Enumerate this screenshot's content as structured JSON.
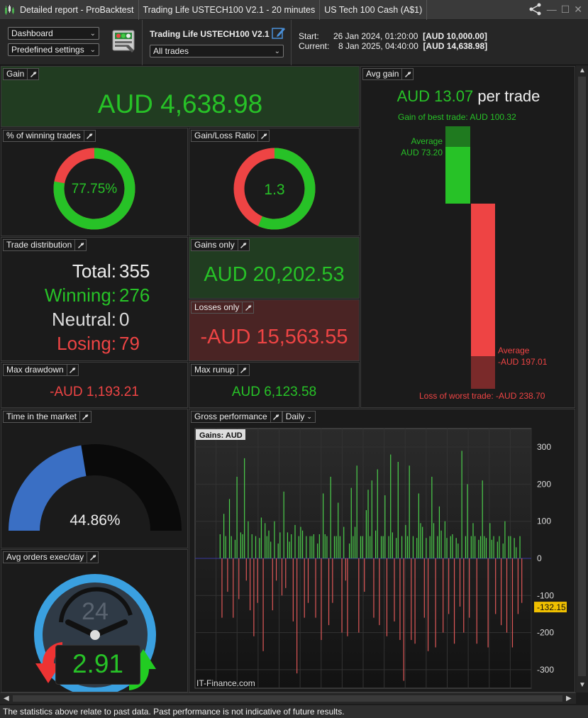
{
  "titlebar": {
    "tabs": [
      "Detailed report - ProBacktest",
      "Trading Life USTECH100 V2.1 - 20 minutes",
      "US Tech 100 Cash (A$1)"
    ]
  },
  "toolbar": {
    "view_select": "Dashboard",
    "settings_select": "Predefined settings",
    "strategy_name": "Trading Life USTECH100 V2.1",
    "trades_select": "All trades",
    "start_label": "Start:",
    "start_date": "26 Jan 2024, 01:20:00",
    "start_capital": "[AUD 10,000.00]",
    "current_label": "Current:",
    "current_date": "8 Jan 2025, 04:40:00",
    "current_capital": "[AUD 14,638.98]"
  },
  "gain": {
    "title": "Gain",
    "value": "AUD 4,638.98"
  },
  "win_pct": {
    "title": "% of winning trades",
    "value": "77.75%",
    "fraction": 0.7775
  },
  "gl_ratio": {
    "title": "Gain/Loss Ratio",
    "value": "1.3",
    "fraction": 0.5652
  },
  "distribution": {
    "title": "Trade distribution",
    "total_label": "Total:",
    "total": "355",
    "winning_label": "Winning:",
    "winning": "276",
    "neutral_label": "Neutral:",
    "neutral": "0",
    "losing_label": "Losing:",
    "losing": "79"
  },
  "gains_only": {
    "title": "Gains only",
    "value": "AUD 20,202.53"
  },
  "losses_only": {
    "title": "Losses only",
    "value": "-AUD 15,563.55"
  },
  "max_drawdown": {
    "title": "Max drawdown",
    "value": "-AUD 1,193.21"
  },
  "max_runup": {
    "title": "Max runup",
    "value": "AUD 6,123.58"
  },
  "avg_gain": {
    "title": "Avg gain",
    "value": "AUD 13.07",
    "suffix": "per trade",
    "best_trade": "Gain of best trade: AUD 100.32",
    "avg_win_label": "Average",
    "avg_win_value": "AUD 73.20",
    "avg_loss_label": "Average",
    "avg_loss_value": "-AUD 197.01",
    "worst_trade": "Loss of worst trade: -AUD 238.70"
  },
  "time_in_market": {
    "title": "Time in the market",
    "value": "44.86%",
    "fraction": 0.4486
  },
  "avg_orders": {
    "title": "Avg orders exec/day",
    "value": "2.91",
    "clock_number": "24"
  },
  "gross_perf": {
    "title": "Gross performance",
    "period_select": "Daily",
    "legend": "Gains: AUD",
    "watermark": "IT-Finance.com",
    "marker_value": "-132.15"
  },
  "chart_data": {
    "type": "bar",
    "title": "Gains: AUD",
    "ylim": [
      -350,
      350
    ],
    "yticks": [
      300,
      200,
      100,
      0,
      -100,
      -200,
      -300
    ],
    "values": [
      65,
      -160,
      120,
      60,
      -90,
      160,
      60,
      -160,
      50,
      220,
      -110,
      70,
      65,
      270,
      -60,
      100,
      -140,
      65,
      -210,
      60,
      -120,
      55,
      110,
      -250,
      95,
      60,
      75,
      45,
      -140,
      100,
      -60,
      40,
      70,
      -100,
      180,
      -80,
      70,
      45,
      65,
      -170,
      90,
      -310,
      60,
      85,
      75,
      -160,
      60,
      -120,
      60,
      60,
      65,
      -160,
      40,
      65,
      -220,
      175,
      65,
      60,
      -180,
      220,
      -120,
      60,
      60,
      150,
      60,
      -200,
      85,
      -60,
      -210,
      40,
      190,
      60,
      85,
      250,
      -200,
      60,
      60,
      -90,
      130,
      185,
      60,
      210,
      -160,
      75,
      240,
      -180,
      60,
      60,
      170,
      -210,
      60,
      280,
      70,
      -170,
      55,
      260,
      -220,
      60,
      -330,
      90,
      60,
      250,
      -220,
      60,
      -230,
      55,
      175,
      95,
      85,
      -160,
      55,
      -250,
      60,
      220,
      95,
      -240,
      60,
      140,
      75,
      -200,
      100,
      55,
      -150,
      60,
      65,
      -230,
      55,
      40,
      -130,
      290,
      -200,
      60,
      200,
      -160,
      60,
      95,
      60,
      -230,
      50,
      60,
      210,
      60,
      55,
      -240,
      95,
      50,
      60,
      -150,
      45,
      60,
      -180,
      40,
      100,
      -200,
      60,
      60,
      -240,
      55,
      30,
      -150,
      60,
      -120
    ]
  }
}
